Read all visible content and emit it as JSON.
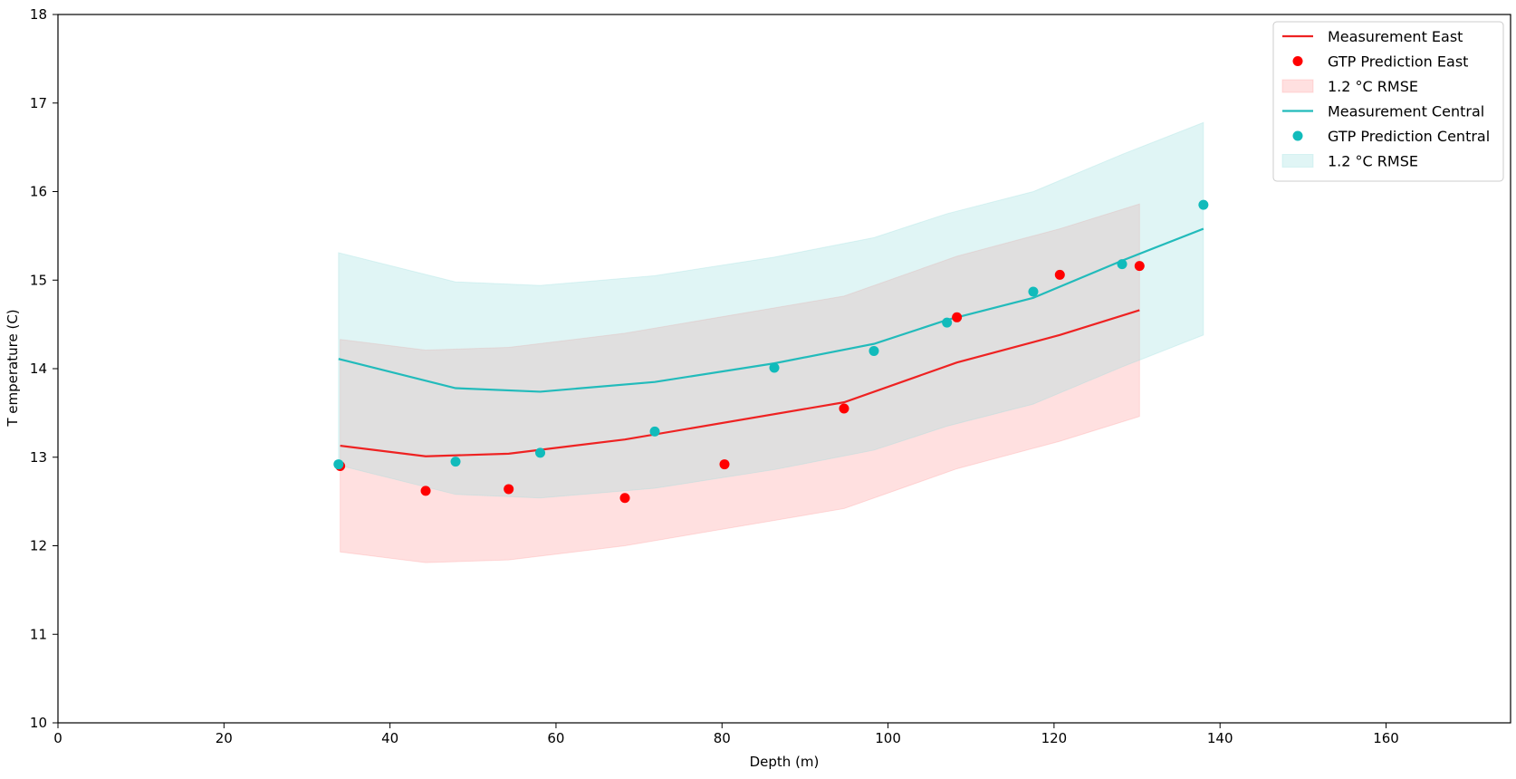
{
  "chart_data": {
    "type": "line",
    "title": "",
    "xlabel": "Depth (m)",
    "ylabel": "T emperature (C)",
    "xlim": [
      0,
      175
    ],
    "ylim": [
      10,
      18
    ],
    "xticks": [
      0,
      20,
      40,
      60,
      80,
      100,
      120,
      140,
      160
    ],
    "yticks": [
      10,
      11,
      12,
      13,
      14,
      15,
      16,
      17,
      18
    ],
    "grid": false,
    "legend_position": "top-right",
    "series": [
      {
        "name": "Measurement East",
        "kind": "line",
        "color": "#ee2222",
        "x": [
          34.0,
          44.3,
          54.3,
          68.3,
          94.7,
          108.3,
          120.7,
          130.3
        ],
        "y": [
          13.13,
          13.01,
          13.04,
          13.2,
          13.62,
          14.07,
          14.38,
          14.66
        ]
      },
      {
        "name": "GTP Prediction East",
        "kind": "scatter",
        "color": "#ff0000",
        "x": [
          34.0,
          44.3,
          54.3,
          68.3,
          80.3,
          94.7,
          108.3,
          120.7,
          130.3
        ],
        "y": [
          12.9,
          12.62,
          12.64,
          12.54,
          12.92,
          13.55,
          14.58,
          15.06,
          15.16
        ]
      },
      {
        "name": "1.2 °C RMSE",
        "kind": "band",
        "color": "#ff9999",
        "opacity": 0.3,
        "x": [
          34.0,
          44.3,
          54.3,
          68.3,
          94.7,
          108.3,
          120.7,
          130.3
        ],
        "lower": [
          11.93,
          11.81,
          11.84,
          12.0,
          12.42,
          12.87,
          13.18,
          13.46
        ],
        "upper": [
          14.33,
          14.21,
          14.24,
          14.4,
          14.82,
          15.27,
          15.58,
          15.86
        ]
      },
      {
        "name": "Measurement Central",
        "kind": "line",
        "color": "#22bbbb",
        "x": [
          33.8,
          47.9,
          58.1,
          71.9,
          86.3,
          98.3,
          107.1,
          117.5,
          128.2,
          138.0
        ],
        "y": [
          14.11,
          13.78,
          13.74,
          13.85,
          14.06,
          14.28,
          14.55,
          14.8,
          15.22,
          15.58
        ]
      },
      {
        "name": "GTP Prediction Central",
        "kind": "scatter",
        "color": "#11bbbb",
        "x": [
          33.8,
          47.9,
          58.1,
          71.9,
          86.3,
          98.3,
          107.1,
          117.5,
          128.2,
          138.0
        ],
        "y": [
          12.92,
          12.95,
          13.05,
          13.29,
          14.01,
          14.2,
          14.52,
          14.87,
          15.18,
          15.85
        ]
      },
      {
        "name": "1.2 °C RMSE",
        "kind": "band",
        "color": "#99dddd",
        "opacity": 0.3,
        "x": [
          33.8,
          47.9,
          58.1,
          71.9,
          86.3,
          98.3,
          107.1,
          117.5,
          128.2,
          138.0
        ],
        "lower": [
          12.91,
          12.58,
          12.54,
          12.65,
          12.86,
          13.08,
          13.35,
          13.6,
          14.02,
          14.38
        ],
        "upper": [
          15.31,
          14.98,
          14.94,
          15.05,
          15.26,
          15.48,
          15.75,
          16.0,
          16.42,
          16.78
        ]
      }
    ]
  }
}
